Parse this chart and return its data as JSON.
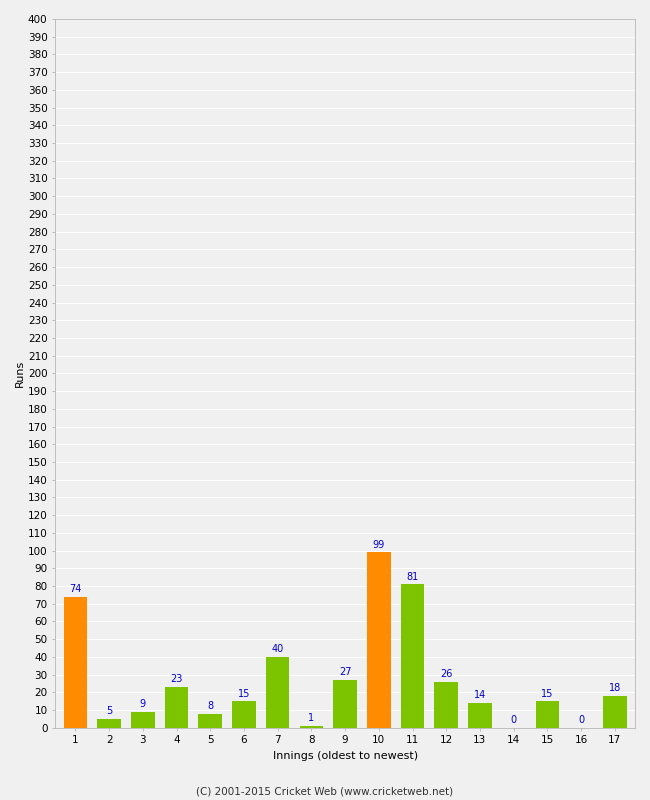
{
  "innings": [
    1,
    2,
    3,
    4,
    5,
    6,
    7,
    8,
    9,
    10,
    11,
    12,
    13,
    14,
    15,
    16,
    17
  ],
  "runs": [
    74,
    5,
    9,
    23,
    8,
    15,
    40,
    1,
    27,
    99,
    81,
    26,
    14,
    0,
    15,
    0,
    18
  ],
  "colors": [
    "#ff8c00",
    "#7dc400",
    "#7dc400",
    "#7dc400",
    "#7dc400",
    "#7dc400",
    "#7dc400",
    "#7dc400",
    "#7dc400",
    "#ff8c00",
    "#7dc400",
    "#7dc400",
    "#7dc400",
    "#7dc400",
    "#7dc400",
    "#7dc400",
    "#7dc400"
  ],
  "ylabel": "Runs",
  "xlabel": "Innings (oldest to newest)",
  "ylim": [
    0,
    400
  ],
  "yticks": [
    0,
    10,
    20,
    30,
    40,
    50,
    60,
    70,
    80,
    90,
    100,
    110,
    120,
    130,
    140,
    150,
    160,
    170,
    180,
    190,
    200,
    210,
    220,
    230,
    240,
    250,
    260,
    270,
    280,
    290,
    300,
    310,
    320,
    330,
    340,
    350,
    360,
    370,
    380,
    390,
    400
  ],
  "background_color": "#f0f0f0",
  "grid_color": "#ffffff",
  "label_color": "#0000cc",
  "footer": "(C) 2001-2015 Cricket Web (www.cricketweb.net)",
  "bar_width": 0.7
}
